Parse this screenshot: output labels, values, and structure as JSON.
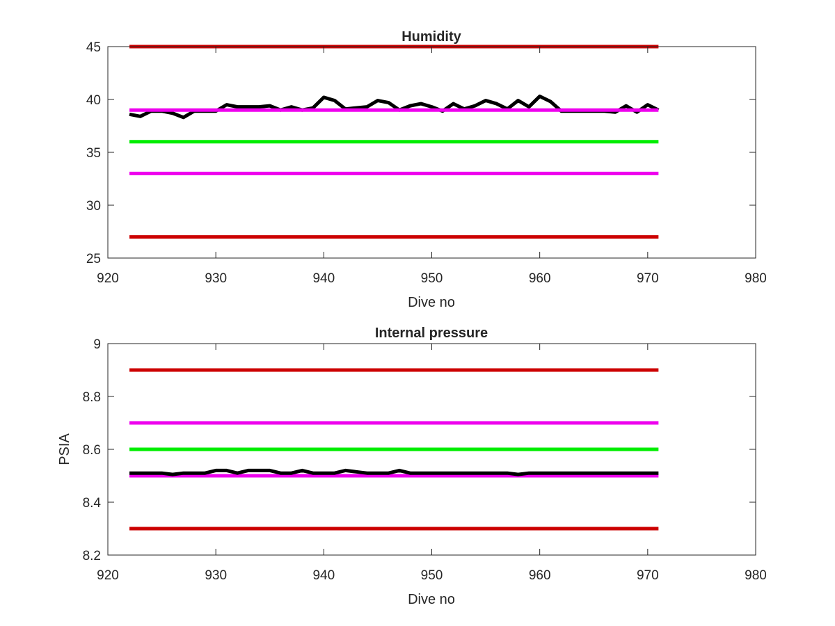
{
  "chart_data": [
    {
      "type": "line",
      "title": "Humidity",
      "xlabel": "Dive no",
      "ylabel": "",
      "xlim": [
        920,
        980
      ],
      "ylim": [
        25,
        45
      ],
      "xticks": [
        920,
        930,
        940,
        950,
        960,
        970,
        980
      ],
      "yticks": [
        25,
        30,
        35,
        40,
        45
      ],
      "xtick_labels": [
        "920",
        "930",
        "940",
        "950",
        "960",
        "970",
        "980"
      ],
      "ytick_labels": [
        "25",
        "30",
        "35",
        "40",
        "45"
      ],
      "grid": false,
      "legend": "none",
      "series": [
        {
          "color": "#cc0000",
          "x": [
            922,
            971
          ],
          "y": [
            45,
            45
          ]
        },
        {
          "color": "#cc0000",
          "x": [
            922,
            971
          ],
          "y": [
            27,
            27
          ]
        },
        {
          "color": "#00ee00",
          "x": [
            922,
            971
          ],
          "y": [
            36,
            36
          ]
        },
        {
          "color": "#ee00ee",
          "x": [
            922,
            971
          ],
          "y": [
            33,
            33
          ]
        },
        {
          "color": "#000000",
          "x": [
            922,
            923,
            924,
            925,
            926,
            927,
            928,
            929,
            930,
            931,
            932,
            933,
            934,
            935,
            936,
            937,
            938,
            939,
            940,
            941,
            942,
            943,
            944,
            945,
            946,
            947,
            948,
            949,
            950,
            951,
            952,
            953,
            954,
            955,
            956,
            957,
            958,
            959,
            960,
            961,
            962,
            963,
            964,
            965,
            966,
            967,
            968,
            969,
            970,
            971
          ],
          "y": [
            38.6,
            38.4,
            38.9,
            38.9,
            38.7,
            38.3,
            38.9,
            38.9,
            38.9,
            39.5,
            39.3,
            39.3,
            39.3,
            39.4,
            39.0,
            39.3,
            39.0,
            39.2,
            40.2,
            39.9,
            39.1,
            39.2,
            39.3,
            39.9,
            39.7,
            39.0,
            39.4,
            39.6,
            39.3,
            38.9,
            39.6,
            39.1,
            39.4,
            39.9,
            39.6,
            39.1,
            39.9,
            39.3,
            40.3,
            39.8,
            38.9,
            38.9,
            38.9,
            38.9,
            38.9,
            38.8,
            39.4,
            38.8,
            39.5,
            39.0
          ]
        },
        {
          "color": "#ee00ee",
          "x": [
            922,
            971
          ],
          "y": [
            39,
            39
          ]
        }
      ]
    },
    {
      "type": "line",
      "title": "Internal pressure",
      "xlabel": "Dive no",
      "ylabel": "PSIA",
      "xlim": [
        920,
        980
      ],
      "ylim": [
        8.2,
        9
      ],
      "xticks": [
        920,
        930,
        940,
        950,
        960,
        970,
        980
      ],
      "yticks": [
        8.2,
        8.4,
        8.6,
        8.8,
        9
      ],
      "xtick_labels": [
        "920",
        "930",
        "940",
        "950",
        "960",
        "970",
        "980"
      ],
      "ytick_labels": [
        "8.2",
        "8.4",
        "8.6",
        "8.8",
        "9"
      ],
      "grid": false,
      "legend": "none",
      "series": [
        {
          "color": "#cc0000",
          "x": [
            922,
            971
          ],
          "y": [
            8.9,
            8.9
          ]
        },
        {
          "color": "#cc0000",
          "x": [
            922,
            971
          ],
          "y": [
            8.3,
            8.3
          ]
        },
        {
          "color": "#ee00ee",
          "x": [
            922,
            971
          ],
          "y": [
            8.7,
            8.7
          ]
        },
        {
          "color": "#00ee00",
          "x": [
            922,
            971
          ],
          "y": [
            8.6,
            8.6
          ]
        },
        {
          "color": "#ee00ee",
          "x": [
            922,
            971
          ],
          "y": [
            8.5,
            8.5
          ]
        },
        {
          "color": "#000000",
          "x": [
            922,
            923,
            924,
            925,
            926,
            927,
            928,
            929,
            930,
            931,
            932,
            933,
            934,
            935,
            936,
            937,
            938,
            939,
            940,
            941,
            942,
            943,
            944,
            945,
            946,
            947,
            948,
            949,
            950,
            951,
            952,
            953,
            954,
            955,
            956,
            957,
            958,
            959,
            960,
            961,
            962,
            963,
            964,
            965,
            966,
            967,
            968,
            969,
            970,
            971
          ],
          "y": [
            8.51,
            8.51,
            8.51,
            8.51,
            8.505,
            8.51,
            8.51,
            8.51,
            8.52,
            8.52,
            8.51,
            8.52,
            8.52,
            8.52,
            8.51,
            8.51,
            8.52,
            8.51,
            8.51,
            8.51,
            8.52,
            8.515,
            8.51,
            8.51,
            8.51,
            8.52,
            8.51,
            8.51,
            8.51,
            8.51,
            8.51,
            8.51,
            8.51,
            8.51,
            8.51,
            8.51,
            8.505,
            8.51,
            8.51,
            8.51,
            8.51,
            8.51,
            8.51,
            8.51,
            8.51,
            8.51,
            8.51,
            8.51,
            8.51,
            8.51
          ]
        }
      ]
    }
  ]
}
